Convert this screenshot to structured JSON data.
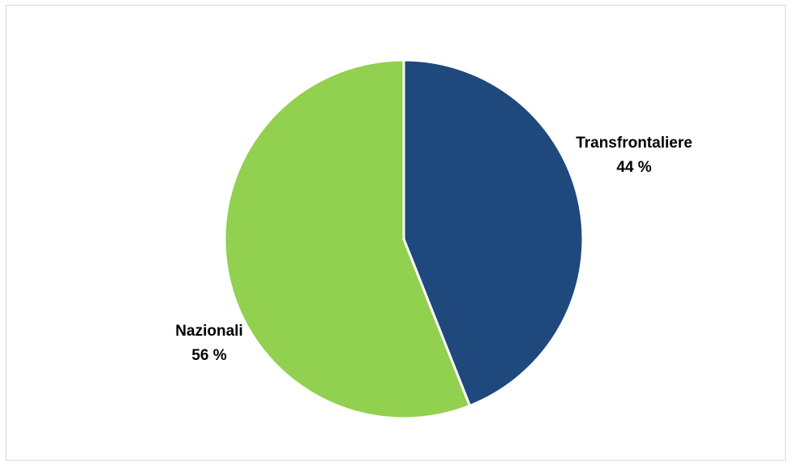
{
  "chart_data": {
    "type": "pie",
    "title": "",
    "slices": [
      {
        "name": "Transfrontaliere",
        "value": 44,
        "value_label": "44 %",
        "color": "#1f497d"
      },
      {
        "name": "Nazionali",
        "value": 56,
        "value_label": "56 %",
        "color": "#92d050"
      }
    ],
    "start_angle_deg": 0,
    "direction": "clockwise",
    "slice_border_color": "#ffffff",
    "legend": "none",
    "data_labels": "outside-end"
  }
}
